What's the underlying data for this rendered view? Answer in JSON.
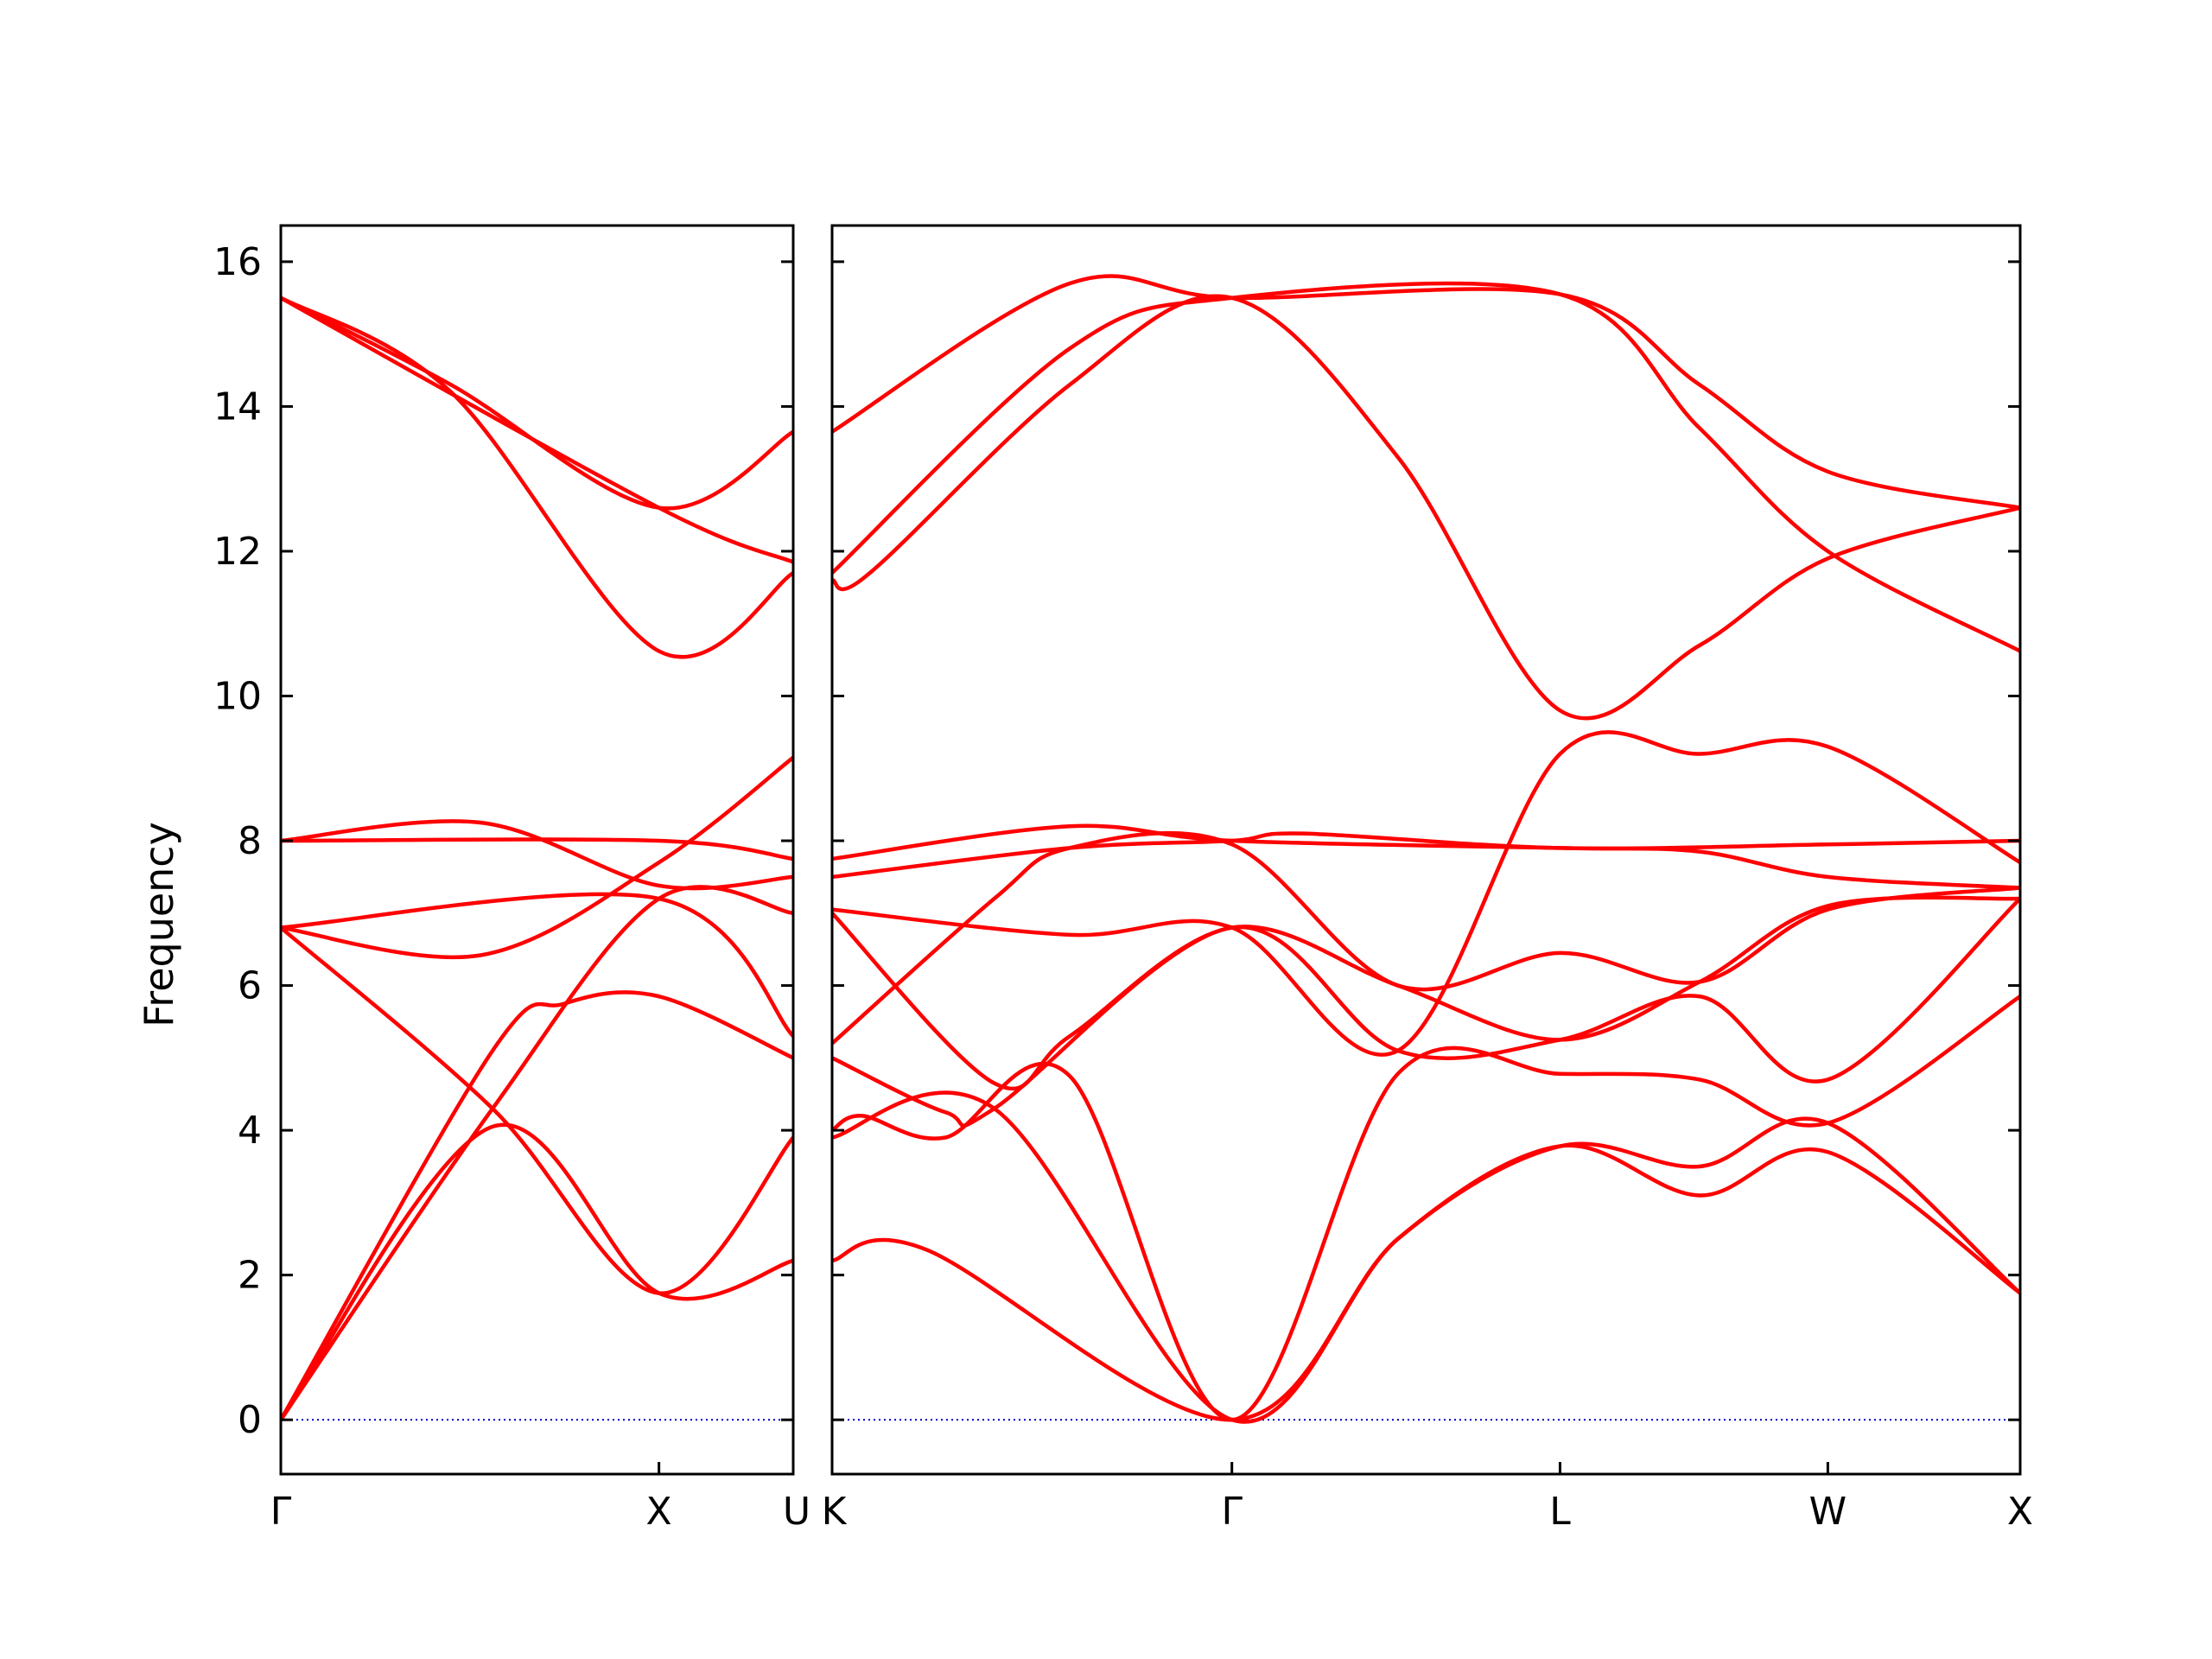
{
  "chart_data": {
    "type": "line",
    "ylabel": "Frequency",
    "ylim": [
      -0.75,
      16.5
    ],
    "yticks": [
      0,
      2,
      4,
      6,
      8,
      10,
      12,
      14,
      16
    ],
    "zero_line": {
      "value": 0,
      "color": "#0000cc",
      "style": "dotted"
    },
    "series_color": "#ff0000",
    "grid": false,
    "panels": [
      {
        "xlim": [
          0,
          1.355
        ],
        "x_ticks": [
          {
            "pos": 0,
            "label": "Γ"
          },
          {
            "pos": 1.0,
            "label": "X"
          },
          {
            "pos": 1.355,
            "label": "U"
          }
        ],
        "bands": [
          [
            [
              0,
              0
            ],
            [
              0.56,
              4.05
            ],
            [
              1.0,
              1.75
            ],
            [
              1.355,
              2.2
            ]
          ],
          [
            [
              0,
              0
            ],
            [
              0.56,
              4.3
            ],
            [
              1.0,
              7.2
            ],
            [
              1.355,
              7.0
            ]
          ],
          [
            [
              0,
              0
            ],
            [
              0.56,
              5.1
            ],
            [
              0.75,
              5.75
            ],
            [
              1.0,
              5.85
            ],
            [
              1.355,
              5.0
            ]
          ],
          [
            [
              0,
              6.8
            ],
            [
              0.56,
              4.3
            ],
            [
              1.0,
              1.75
            ],
            [
              1.355,
              3.9
            ]
          ],
          [
            [
              0,
              6.8
            ],
            [
              0.53,
              6.42
            ],
            [
              1.0,
              7.7
            ],
            [
              1.355,
              9.15
            ]
          ],
          [
            [
              0,
              6.8
            ],
            [
              1.0,
              7.2
            ],
            [
              1.355,
              5.3
            ]
          ],
          [
            [
              0,
              8.0
            ],
            [
              0.53,
              8.25
            ],
            [
              1.0,
              7.38
            ],
            [
              1.355,
              7.5
            ]
          ],
          [
            [
              0,
              8.0
            ],
            [
              1.0,
              8.0
            ],
            [
              1.355,
              7.75
            ]
          ],
          [
            [
              0,
              15.5
            ],
            [
              0.45,
              14.2
            ],
            [
              1.0,
              10.62
            ],
            [
              1.355,
              11.7
            ]
          ],
          [
            [
              0,
              15.5
            ],
            [
              0.45,
              14.3
            ],
            [
              1.0,
              12.6
            ],
            [
              1.355,
              13.65
            ]
          ],
          [
            [
              0,
              15.5
            ],
            [
              1.0,
              12.6
            ],
            [
              1.355,
              11.85
            ]
          ]
        ]
      },
      {
        "xlim": [
          0,
          3.15
        ],
        "x_ticks": [
          {
            "pos": 0,
            "label": "K"
          },
          {
            "pos": 1.06,
            "label": "Γ"
          },
          {
            "pos": 1.93,
            "label": "L"
          },
          {
            "pos": 2.64,
            "label": "W"
          },
          {
            "pos": 3.15,
            "label": "X"
          }
        ],
        "bands": [
          [
            [
              0,
              2.2
            ],
            [
              0.25,
              2.35
            ],
            [
              1.06,
              0
            ],
            [
              1.5,
              2.5
            ],
            [
              1.93,
              3.78
            ],
            [
              2.3,
              3.1
            ],
            [
              2.64,
              3.7
            ],
            [
              3.15,
              1.75
            ]
          ],
          [
            [
              0,
              3.9
            ],
            [
              0.43,
              4.3
            ],
            [
              1.06,
              0
            ],
            [
              1.5,
              2.5
            ],
            [
              1.93,
              3.78
            ],
            [
              2.3,
              3.5
            ],
            [
              2.64,
              4.1
            ],
            [
              3.15,
              1.75
            ]
          ],
          [
            [
              0,
              4.0
            ],
            [
              0.08,
              4.2
            ],
            [
              0.3,
              3.9
            ],
            [
              0.63,
              4.75
            ],
            [
              1.06,
              0
            ],
            [
              1.5,
              4.78
            ],
            [
              1.93,
              4.78
            ],
            [
              2.3,
              4.7
            ],
            [
              2.64,
              4.1
            ],
            [
              3.15,
              5.85
            ]
          ],
          [
            [
              0,
              5.0
            ],
            [
              0.3,
              4.25
            ],
            [
              0.43,
              4.3
            ],
            [
              1.06,
              6.8
            ],
            [
              1.5,
              5.1
            ],
            [
              1.93,
              5.25
            ],
            [
              2.3,
              5.85
            ],
            [
              2.64,
              4.7
            ],
            [
              3.15,
              7.2
            ]
          ],
          [
            [
              0,
              7.0
            ],
            [
              0.43,
              4.65
            ],
            [
              0.63,
              5.3
            ],
            [
              1.06,
              6.8
            ],
            [
              1.5,
              6.0
            ],
            [
              1.93,
              5.25
            ],
            [
              2.3,
              6.05
            ],
            [
              2.64,
              7.1
            ],
            [
              3.15,
              7.2
            ]
          ],
          [
            [
              0,
              5.2
            ],
            [
              0.43,
              7.2
            ],
            [
              0.63,
              7.9
            ],
            [
              1.06,
              7.95
            ],
            [
              1.5,
              6.0
            ],
            [
              1.93,
              6.45
            ],
            [
              2.3,
              6.05
            ],
            [
              2.64,
              7.05
            ],
            [
              3.15,
              7.35
            ]
          ],
          [
            [
              0,
              7.05
            ],
            [
              0.63,
              6.7
            ],
            [
              1.06,
              6.8
            ],
            [
              1.5,
              5.1
            ],
            [
              1.93,
              9.2
            ],
            [
              2.3,
              9.2
            ],
            [
              2.64,
              9.3
            ],
            [
              3.15,
              7.7
            ]
          ],
          [
            [
              0,
              7.75
            ],
            [
              0.63,
              8.2
            ],
            [
              1.06,
              8.0
            ],
            [
              1.93,
              7.9
            ],
            [
              2.3,
              7.85
            ],
            [
              2.64,
              7.5
            ],
            [
              3.15,
              7.35
            ]
          ],
          [
            [
              0,
              7.5
            ],
            [
              0.63,
              7.9
            ],
            [
              1.06,
              8.0
            ],
            [
              1.25,
              8.1
            ],
            [
              1.93,
              7.9
            ],
            [
              2.64,
              7.95
            ],
            [
              3.15,
              8.0
            ]
          ],
          [
            [
              0,
              11.6
            ],
            [
              0.1,
              11.7
            ],
            [
              0.63,
              14.3
            ],
            [
              1.06,
              15.5
            ],
            [
              1.5,
              13.3
            ],
            [
              1.93,
              9.8
            ],
            [
              2.3,
              10.7
            ],
            [
              2.64,
              11.9
            ],
            [
              3.15,
              12.6
            ]
          ],
          [
            [
              0,
              11.7
            ],
            [
              0.63,
              14.8
            ],
            [
              1.06,
              15.5
            ],
            [
              1.93,
              15.55
            ],
            [
              2.3,
              13.7
            ],
            [
              2.64,
              12.0
            ],
            [
              3.15,
              10.62
            ]
          ],
          [
            [
              0,
              13.65
            ],
            [
              0.63,
              15.7
            ],
            [
              1.06,
              15.5
            ],
            [
              1.93,
              15.55
            ],
            [
              2.3,
              14.3
            ],
            [
              2.64,
              13.1
            ],
            [
              3.15,
              12.6
            ]
          ]
        ]
      }
    ]
  }
}
